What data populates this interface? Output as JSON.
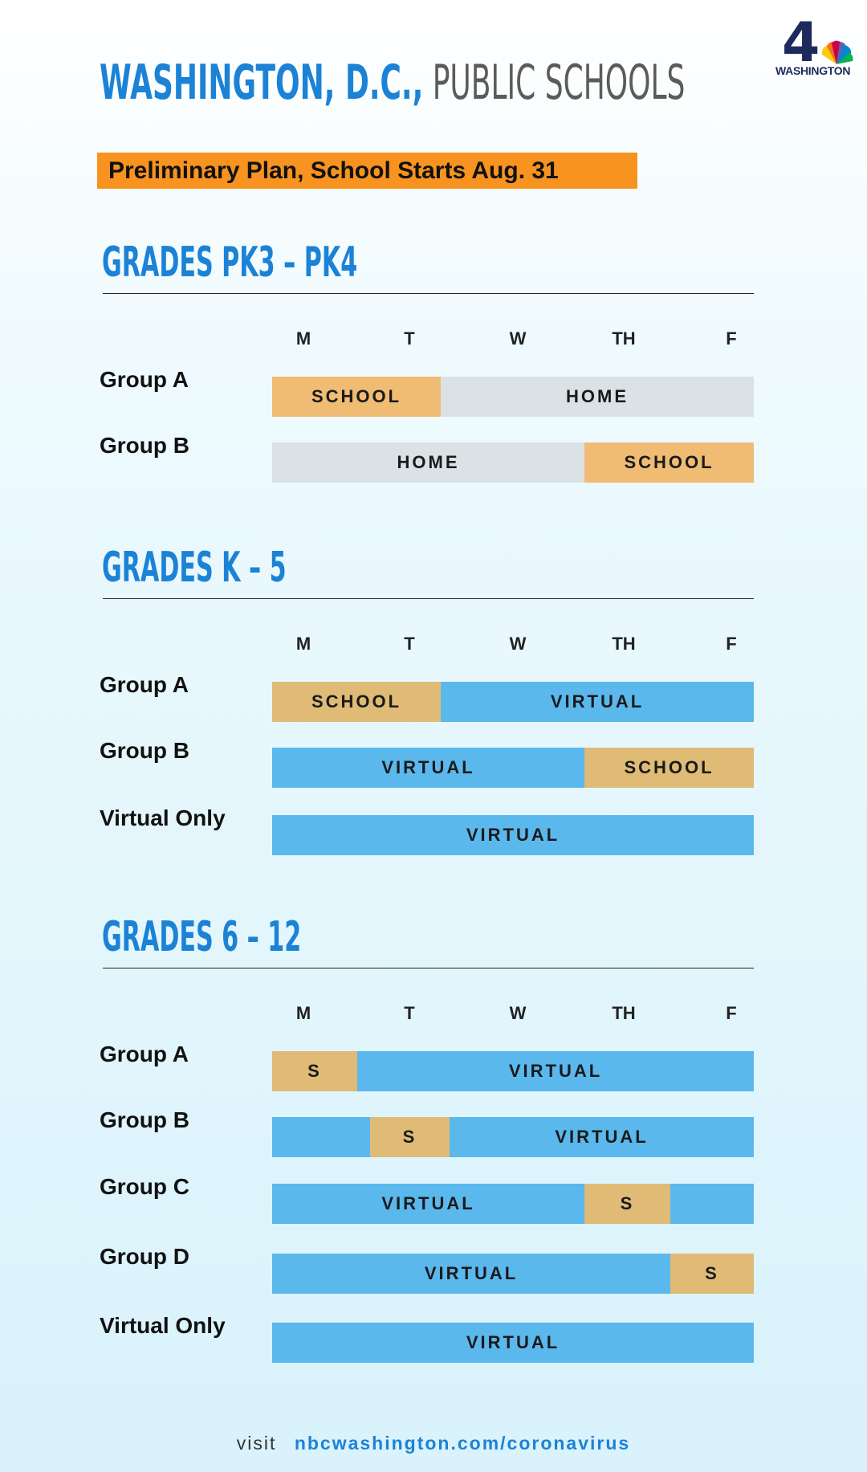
{
  "header": {
    "title_bold": "WASHINGTON, D.C.,",
    "title_light": " PUBLIC SCHOOLS",
    "logo_number": "4",
    "logo_text": "WASHINGTON",
    "banner": "Preliminary Plan, School Starts Aug. 31"
  },
  "days": [
    "M",
    "T",
    "W",
    "TH",
    "F"
  ],
  "sections": [
    {
      "title": "GRADES PK3 – PK4",
      "rows": [
        {
          "label": "Group A",
          "segments": [
            {
              "text": "SCHOOL",
              "kind": "school-light"
            },
            {
              "text": "HOME",
              "kind": "home"
            }
          ]
        },
        {
          "label": "Group B",
          "segments": [
            {
              "text": "HOME",
              "kind": "home"
            },
            {
              "text": "SCHOOL",
              "kind": "school-light"
            }
          ]
        }
      ]
    },
    {
      "title": "GRADES K – 5",
      "rows": [
        {
          "label": "Group A",
          "segments": [
            {
              "text": "SCHOOL",
              "kind": "school"
            },
            {
              "text": "VIRTUAL",
              "kind": "virtual"
            }
          ]
        },
        {
          "label": "Group B",
          "segments": [
            {
              "text": "VIRTUAL",
              "kind": "virtual"
            },
            {
              "text": "SCHOOL",
              "kind": "school"
            }
          ]
        },
        {
          "label": "Virtual Only",
          "segments": [
            {
              "text": "VIRTUAL",
              "kind": "virtual"
            }
          ]
        }
      ]
    },
    {
      "title": "GRADES 6 – 12",
      "rows": [
        {
          "label": "Group A",
          "segments": [
            {
              "text": "S",
              "kind": "school"
            },
            {
              "text": "VIRTUAL",
              "kind": "virtual"
            }
          ]
        },
        {
          "label": "Group B",
          "segments": [
            {
              "text": "",
              "kind": "virtual"
            },
            {
              "text": "S",
              "kind": "school"
            },
            {
              "text": "VIRTUAL",
              "kind": "virtual"
            }
          ]
        },
        {
          "label": "Group C",
          "segments": [
            {
              "text": "VIRTUAL",
              "kind": "virtual"
            },
            {
              "text": "S",
              "kind": "school"
            },
            {
              "text": "",
              "kind": "virtual"
            }
          ]
        },
        {
          "label": "Group D",
          "segments": [
            {
              "text": "VIRTUAL",
              "kind": "virtual"
            },
            {
              "text": "S",
              "kind": "school"
            }
          ]
        },
        {
          "label": "Virtual Only",
          "segments": [
            {
              "text": "VIRTUAL",
              "kind": "virtual"
            }
          ]
        }
      ]
    }
  ],
  "colors": {
    "title_blue": "#1c82d6",
    "banner_orange": "#f7931e",
    "school_light": "#f0bc74",
    "school": "#e0bb76",
    "home": "#dbe2e5",
    "virtual": "#5ab8ed"
  },
  "footer": {
    "visit": "visit",
    "url": "nbcwashington.com/coronavirus"
  }
}
